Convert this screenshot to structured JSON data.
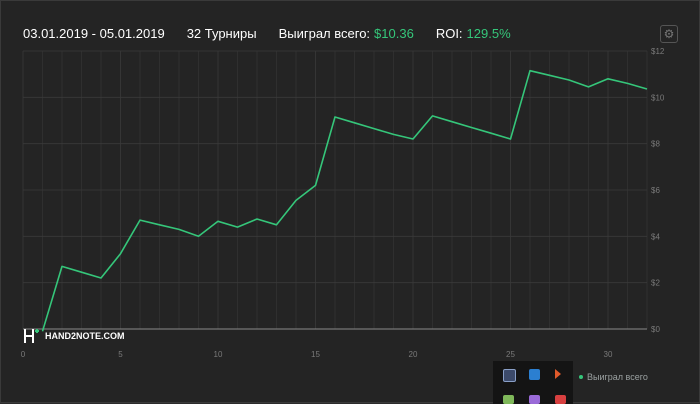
{
  "header": {
    "date_range": "03.01.2019 - 05.01.2019",
    "tournaments": "32 Турниры",
    "won_label": "Выиграл всего:",
    "won_value": "$10.36",
    "roi_label": "ROI:",
    "roi_value": "129.5%"
  },
  "settings_icon": "gear-icon",
  "logo_text": "HAND2NOTE.COM",
  "colors": {
    "background": "#242424",
    "line": "#35c67a",
    "grid": "#3a3a3a",
    "zero_line": "#8a8a8a",
    "axis_text": "#7a7a7a"
  },
  "chart_data": {
    "type": "line",
    "x": [
      1,
      2,
      3,
      4,
      5,
      6,
      7,
      8,
      9,
      10,
      11,
      12,
      13,
      14,
      15,
      16,
      17,
      18,
      19,
      20,
      21,
      22,
      23,
      24,
      25,
      26,
      27,
      28,
      29,
      30,
      31,
      32
    ],
    "series": [
      {
        "name": "Выиграл всего",
        "values": [
          -0.1,
          2.7,
          2.45,
          2.2,
          3.25,
          4.7,
          4.5,
          4.3,
          4.0,
          4.65,
          4.4,
          4.75,
          4.5,
          5.55,
          6.2,
          9.15,
          8.9,
          8.65,
          8.4,
          8.2,
          9.2,
          8.95,
          8.7,
          8.45,
          8.2,
          11.15,
          10.95,
          10.75,
          10.45,
          10.8,
          10.6,
          10.36
        ]
      }
    ],
    "xlim": [
      0,
      32
    ],
    "ylim": [
      0,
      12
    ],
    "x_ticks": [
      0,
      5,
      10,
      15,
      20,
      25,
      30
    ],
    "y_ticks": [
      0,
      2,
      4,
      6,
      8,
      10,
      12
    ],
    "y_tick_labels": [
      "$0",
      "$2",
      "$4",
      "$6",
      "$8",
      "$10",
      "$12"
    ],
    "x_tick_labels": [
      "0",
      "5",
      "10",
      "15",
      "20",
      "25",
      "30"
    ],
    "grid": true,
    "legend": "bottom-right"
  }
}
